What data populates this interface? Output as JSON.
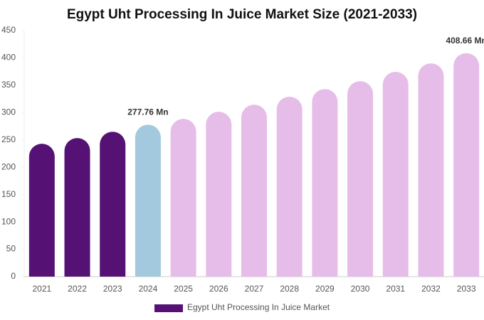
{
  "chart_data": {
    "type": "bar",
    "title": "Egypt Uht Processing In Juice Market Size (2021-2033)",
    "categories": [
      "2021",
      "2022",
      "2023",
      "2024",
      "2025",
      "2026",
      "2027",
      "2028",
      "2029",
      "2030",
      "2031",
      "2032",
      "2033"
    ],
    "series": [
      {
        "name": "Egypt Uht Processing In Juice Market",
        "color": "#551173",
        "values": [
          243,
          253.5,
          265,
          277.76,
          288.5,
          301.5,
          314.5,
          329,
          343,
          357.5,
          374.5,
          390,
          408.66
        ],
        "value_labels": [
          null,
          null,
          null,
          "277.76 Mn",
          null,
          null,
          null,
          null,
          null,
          null,
          null,
          null,
          "408.66 Mn"
        ],
        "colors": [
          "#551173",
          "#551173",
          "#551173",
          "#a3c9de",
          "#e6bde8",
          "#e6bde8",
          "#e6bde8",
          "#e6bde8",
          "#e6bde8",
          "#e6bde8",
          "#e6bde8",
          "#e6bde8",
          "#e6bde8"
        ]
      }
    ],
    "ylim": [
      0,
      450
    ],
    "yticks": [
      0,
      50,
      100,
      150,
      200,
      250,
      300,
      350,
      400,
      450
    ],
    "grid": false
  }
}
